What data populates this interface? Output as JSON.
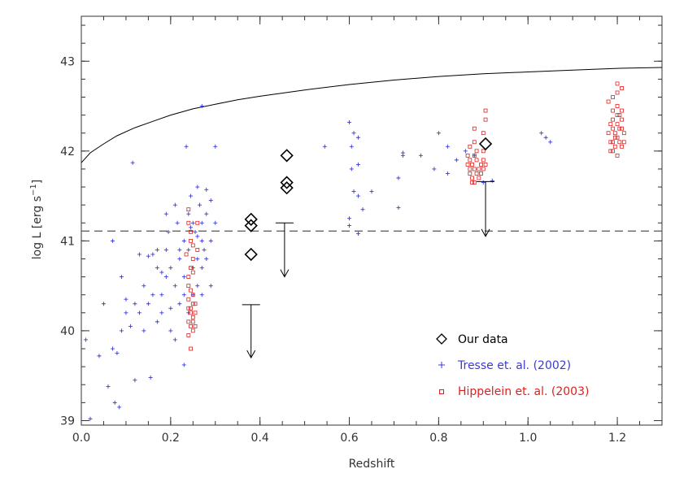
{
  "chart_data": {
    "type": "scatter",
    "xlabel": "Redshift",
    "ylabel_main": "log L [erg s",
    "ylabel_sup": "−1",
    "ylabel_end": "]",
    "xlim": [
      0.0,
      1.3
    ],
    "ylim": [
      38.95,
      43.5
    ],
    "x_ticks": [
      0.0,
      0.2,
      0.4,
      0.6,
      0.8,
      1.0,
      1.2
    ],
    "x_tick_labels": [
      "0.0",
      "0.2",
      "0.4",
      "0.6",
      "0.8",
      "1.0",
      "1.2"
    ],
    "y_ticks": [
      39,
      40,
      41,
      42,
      43
    ],
    "y_tick_labels": [
      "39",
      "40",
      "41",
      "42",
      "43"
    ],
    "grid": false,
    "legend_position": "bottom-right",
    "colors": {
      "our_data": "#000000",
      "tresse": "#3b3bd8",
      "hippelein": "#e02020",
      "curve": "#000000"
    },
    "series": [
      {
        "name": "Our data",
        "marker": "diamond",
        "points": [
          [
            0.38,
            41.24
          ],
          [
            0.38,
            41.17
          ],
          [
            0.38,
            40.85
          ],
          [
            0.46,
            41.95
          ],
          [
            0.46,
            41.65
          ],
          [
            0.46,
            41.59
          ],
          [
            0.905,
            42.08
          ]
        ]
      },
      {
        "name": "Tresse et. al. (2002)",
        "marker": "plus",
        "points": [
          [
            0.01,
            39.9
          ],
          [
            0.02,
            39.02
          ],
          [
            0.04,
            39.72
          ],
          [
            0.06,
            39.38
          ],
          [
            0.07,
            39.8
          ],
          [
            0.08,
            39.75
          ],
          [
            0.075,
            39.2
          ],
          [
            0.085,
            39.15
          ],
          [
            0.05,
            40.3
          ],
          [
            0.09,
            40.0
          ],
          [
            0.1,
            40.2
          ],
          [
            0.11,
            40.05
          ],
          [
            0.12,
            40.3
          ],
          [
            0.12,
            39.45
          ],
          [
            0.13,
            40.2
          ],
          [
            0.14,
            40.5
          ],
          [
            0.15,
            40.83
          ],
          [
            0.15,
            40.3
          ],
          [
            0.16,
            40.4
          ],
          [
            0.155,
            39.48
          ],
          [
            0.17,
            40.7
          ],
          [
            0.17,
            40.1
          ],
          [
            0.18,
            40.65
          ],
          [
            0.18,
            40.2
          ],
          [
            0.19,
            40.6
          ],
          [
            0.19,
            40.9
          ],
          [
            0.2,
            40.7
          ],
          [
            0.2,
            40.0
          ],
          [
            0.21,
            40.5
          ],
          [
            0.21,
            39.9
          ],
          [
            0.22,
            40.8
          ],
          [
            0.22,
            40.3
          ],
          [
            0.23,
            40.6
          ],
          [
            0.23,
            41.0
          ],
          [
            0.23,
            39.62
          ],
          [
            0.24,
            40.9
          ],
          [
            0.25,
            40.7
          ],
          [
            0.25,
            41.2
          ],
          [
            0.26,
            40.8
          ],
          [
            0.26,
            41.6
          ],
          [
            0.27,
            40.7
          ],
          [
            0.27,
            41.0
          ],
          [
            0.28,
            40.8
          ],
          [
            0.28,
            41.3
          ],
          [
            0.29,
            40.5
          ],
          [
            0.29,
            41.0
          ],
          [
            0.3,
            42.05
          ],
          [
            0.235,
            42.05
          ],
          [
            0.27,
            42.5
          ],
          [
            0.115,
            41.87
          ],
          [
            0.07,
            41.0
          ],
          [
            0.09,
            40.6
          ],
          [
            0.14,
            40.0
          ],
          [
            0.16,
            40.85
          ],
          [
            0.19,
            41.3
          ],
          [
            0.21,
            41.4
          ],
          [
            0.24,
            41.3
          ],
          [
            0.245,
            41.15
          ],
          [
            0.27,
            41.2
          ],
          [
            0.28,
            41.57
          ],
          [
            0.255,
            41.1
          ],
          [
            0.23,
            40.4
          ],
          [
            0.26,
            40.5
          ],
          [
            0.18,
            40.4
          ],
          [
            0.2,
            40.25
          ],
          [
            0.22,
            40.9
          ],
          [
            0.24,
            40.2
          ],
          [
            0.25,
            40.4
          ],
          [
            0.27,
            40.4
          ],
          [
            0.275,
            40.9
          ],
          [
            0.1,
            40.35
          ],
          [
            0.13,
            40.85
          ],
          [
            0.17,
            40.9
          ],
          [
            0.195,
            41.1
          ],
          [
            0.215,
            41.2
          ],
          [
            0.245,
            41.5
          ],
          [
            0.265,
            41.4
          ],
          [
            0.29,
            41.45
          ],
          [
            0.3,
            41.2
          ],
          [
            0.26,
            41.05
          ],
          [
            0.545,
            42.05
          ],
          [
            0.6,
            42.32
          ],
          [
            0.61,
            42.2
          ],
          [
            0.605,
            42.05
          ],
          [
            0.605,
            41.8
          ],
          [
            0.61,
            41.55
          ],
          [
            0.62,
            41.85
          ],
          [
            0.62,
            41.5
          ],
          [
            0.65,
            41.55
          ],
          [
            0.63,
            41.35
          ],
          [
            0.6,
            41.25
          ],
          [
            0.6,
            41.17
          ],
          [
            0.62,
            41.08
          ],
          [
            0.62,
            42.15
          ],
          [
            0.71,
            41.37
          ],
          [
            0.72,
            41.95
          ],
          [
            0.71,
            41.7
          ],
          [
            0.72,
            41.98
          ],
          [
            0.76,
            41.95
          ],
          [
            0.79,
            41.8
          ],
          [
            0.8,
            42.2
          ],
          [
            0.82,
            42.05
          ],
          [
            0.82,
            41.75
          ],
          [
            0.84,
            41.9
          ],
          [
            0.86,
            42.0
          ],
          [
            0.88,
            41.95
          ],
          [
            0.92,
            41.67
          ],
          [
            1.03,
            42.2
          ],
          [
            1.04,
            42.15
          ],
          [
            1.05,
            42.1
          ],
          [
            0.9,
            41.65
          ]
        ]
      },
      {
        "name": "Hippelein et. al. (2003)",
        "marker": "square",
        "points": [
          [
            0.24,
            41.35
          ],
          [
            0.24,
            41.2
          ],
          [
            0.245,
            41.0
          ],
          [
            0.25,
            40.95
          ],
          [
            0.25,
            40.8
          ],
          [
            0.245,
            40.7
          ],
          [
            0.24,
            40.6
          ],
          [
            0.245,
            40.45
          ],
          [
            0.24,
            40.35
          ],
          [
            0.25,
            40.3
          ],
          [
            0.24,
            40.25
          ],
          [
            0.245,
            40.2
          ],
          [
            0.25,
            40.15
          ],
          [
            0.24,
            40.1
          ],
          [
            0.245,
            40.05
          ],
          [
            0.25,
            40.0
          ],
          [
            0.24,
            39.95
          ],
          [
            0.245,
            39.8
          ],
          [
            0.25,
            40.4
          ],
          [
            0.255,
            40.2
          ],
          [
            0.25,
            40.1
          ],
          [
            0.255,
            40.05
          ],
          [
            0.26,
            40.9
          ],
          [
            0.24,
            40.5
          ],
          [
            0.245,
            41.1
          ],
          [
            0.25,
            40.65
          ],
          [
            0.26,
            41.2
          ],
          [
            0.235,
            40.85
          ],
          [
            0.255,
            40.3
          ],
          [
            0.245,
            40.25
          ],
          [
            0.88,
            42.25
          ],
          [
            0.87,
            42.05
          ],
          [
            0.865,
            41.95
          ],
          [
            0.87,
            41.9
          ],
          [
            0.875,
            41.85
          ],
          [
            0.88,
            41.8
          ],
          [
            0.87,
            41.75
          ],
          [
            0.875,
            41.7
          ],
          [
            0.88,
            41.65
          ],
          [
            0.885,
            41.75
          ],
          [
            0.89,
            41.8
          ],
          [
            0.895,
            41.85
          ],
          [
            0.9,
            41.9
          ],
          [
            0.9,
            42.2
          ],
          [
            0.905,
            42.45
          ],
          [
            0.905,
            42.35
          ],
          [
            0.9,
            42.0
          ],
          [
            0.885,
            41.9
          ],
          [
            0.88,
            41.95
          ],
          [
            0.89,
            41.7
          ],
          [
            0.87,
            41.8
          ],
          [
            0.865,
            41.85
          ],
          [
            0.895,
            41.75
          ],
          [
            0.9,
            41.8
          ],
          [
            0.905,
            41.85
          ],
          [
            0.88,
            42.1
          ],
          [
            0.875,
            41.65
          ],
          [
            0.885,
            42.0
          ],
          [
            1.18,
            42.55
          ],
          [
            1.19,
            42.6
          ],
          [
            1.2,
            42.75
          ],
          [
            1.2,
            42.65
          ],
          [
            1.21,
            42.7
          ],
          [
            1.19,
            42.45
          ],
          [
            1.2,
            42.4
          ],
          [
            1.21,
            42.45
          ],
          [
            1.185,
            42.3
          ],
          [
            1.19,
            42.25
          ],
          [
            1.195,
            42.2
          ],
          [
            1.2,
            42.15
          ],
          [
            1.205,
            42.1
          ],
          [
            1.21,
            42.05
          ],
          [
            1.19,
            42.0
          ],
          [
            1.2,
            41.95
          ],
          [
            1.185,
            42.1
          ],
          [
            1.195,
            42.15
          ],
          [
            1.205,
            42.25
          ],
          [
            1.21,
            42.35
          ],
          [
            1.215,
            42.2
          ],
          [
            1.215,
            42.1
          ],
          [
            1.18,
            42.2
          ],
          [
            1.185,
            42.0
          ],
          [
            1.2,
            42.3
          ],
          [
            1.19,
            42.35
          ],
          [
            1.21,
            42.25
          ],
          [
            1.195,
            42.05
          ],
          [
            1.205,
            42.4
          ],
          [
            1.2,
            42.5
          ],
          [
            1.19,
            42.1
          ]
        ]
      }
    ],
    "upper_limits": [
      {
        "x": 0.38,
        "y_top": 40.29,
        "y_bottom": 39.7
      },
      {
        "x": 0.455,
        "y_top": 41.2,
        "y_bottom": 40.6
      },
      {
        "x": 0.905,
        "y_top": 41.66,
        "y_bottom": 41.05
      }
    ],
    "reference_line_y": 41.11,
    "curve": [
      [
        0.0,
        41.87
      ],
      [
        0.02,
        41.98
      ],
      [
        0.05,
        42.08
      ],
      [
        0.08,
        42.17
      ],
      [
        0.12,
        42.26
      ],
      [
        0.16,
        42.33
      ],
      [
        0.2,
        42.4
      ],
      [
        0.25,
        42.47
      ],
      [
        0.3,
        42.52
      ],
      [
        0.35,
        42.57
      ],
      [
        0.4,
        42.61
      ],
      [
        0.5,
        42.68
      ],
      [
        0.6,
        42.74
      ],
      [
        0.7,
        42.79
      ],
      [
        0.8,
        42.83
      ],
      [
        0.9,
        42.86
      ],
      [
        1.0,
        42.88
      ],
      [
        1.1,
        42.9
      ],
      [
        1.2,
        42.92
      ],
      [
        1.3,
        42.93
      ]
    ]
  }
}
